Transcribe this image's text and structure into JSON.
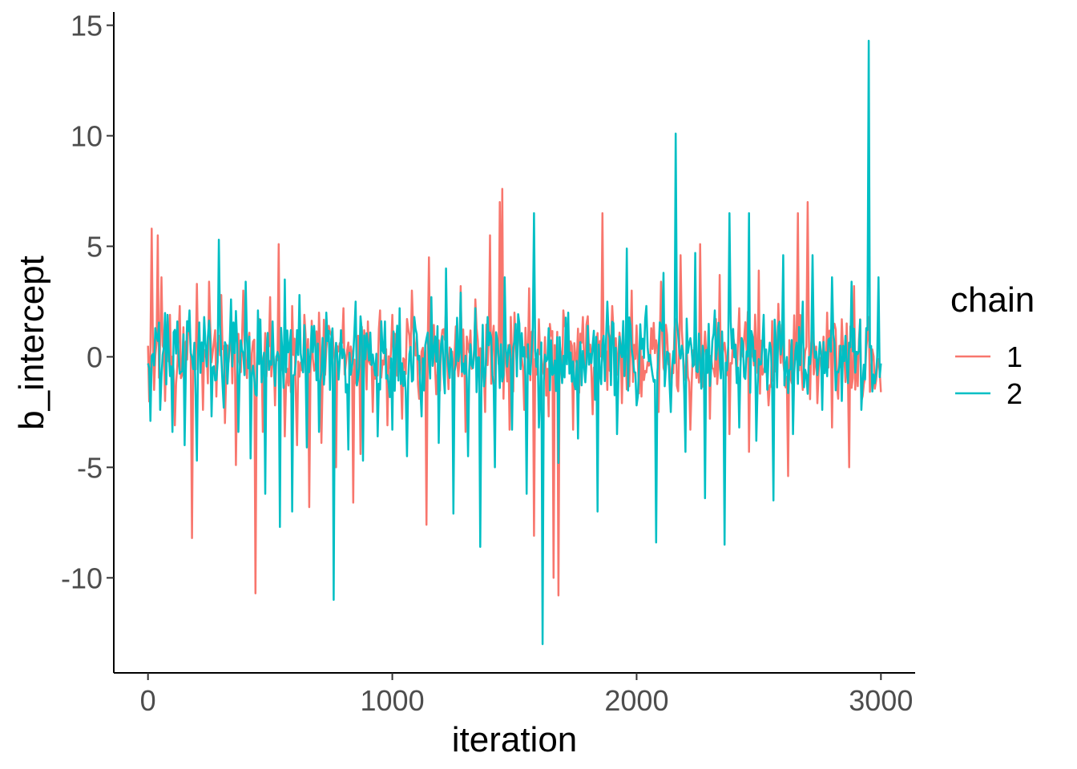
{
  "chart_data": {
    "type": "line",
    "xlabel": "iteration",
    "ylabel": "b_intercept",
    "xlim": [
      -140,
      3140
    ],
    "ylim": [
      -14.3,
      15.6
    ],
    "x_ticks": [
      0,
      1000,
      2000,
      3000
    ],
    "x_tick_labels": [
      "0",
      "1000",
      "2000",
      "3000"
    ],
    "y_ticks": [
      -10,
      -5,
      0,
      5,
      10,
      15
    ],
    "y_tick_labels": [
      "-10",
      "-5",
      "0",
      "5",
      "10",
      "15"
    ],
    "grid": false,
    "legend": {
      "title": "chain",
      "placement": "right"
    },
    "series": [
      {
        "name": "1",
        "color": "#F8766D",
        "x": [
          0,
          15,
          25,
          40,
          55,
          70,
          90,
          110,
          130,
          150,
          165,
          180,
          200,
          225,
          250,
          280,
          300,
          315,
          340,
          360,
          390,
          420,
          440,
          450,
          470,
          500,
          520,
          535,
          560,
          590,
          610,
          640,
          660,
          700,
          710,
          740,
          770,
          800,
          840,
          870,
          900,
          920,
          950,
          980,
          1000,
          1040,
          1080,
          1110,
          1140,
          1150,
          1180,
          1220,
          1250,
          1280,
          1300,
          1340,
          1380,
          1400,
          1420,
          1440,
          1450,
          1480,
          1500,
          1540,
          1560,
          1580,
          1600,
          1640,
          1660,
          1680,
          1700,
          1740,
          1780,
          1820,
          1860,
          1880,
          1900,
          1940,
          1980,
          2020,
          2060,
          2090,
          2100,
          2140,
          2180,
          2220,
          2260,
          2300,
          2340,
          2380,
          2420,
          2460,
          2500,
          2540,
          2580,
          2620,
          2660,
          2680,
          2700,
          2740,
          2780,
          2800,
          2840,
          2870,
          2890,
          2920,
          2950,
          2980,
          3000
        ],
        "y": [
          0.5,
          5.8,
          -1.5,
          5.5,
          3.6,
          -2.0,
          1.9,
          -3.1,
          2.3,
          -1.0,
          1.5,
          -8.2,
          3.3,
          -2.4,
          3.4,
          -1.8,
          2.8,
          -3.0,
          1.2,
          -4.9,
          3.0,
          -2.6,
          -10.7,
          0.8,
          -3.4,
          2.7,
          -2.2,
          5.1,
          -3.6,
          2.3,
          -4.0,
          1.9,
          -6.8,
          2.0,
          -3.9,
          1.4,
          -5.0,
          2.2,
          -6.6,
          -4.4,
          1.6,
          -2.5,
          2.1,
          -3.1,
          1.9,
          -2.8,
          3.0,
          -1.9,
          -7.6,
          4.5,
          -1.7,
          2.3,
          -2.2,
          3.2,
          -3.4,
          2.6,
          -2.5,
          5.5,
          -1.2,
          7.0,
          7.6,
          -3.3,
          2.0,
          -2.4,
          3.1,
          -8.1,
          1.7,
          -2.7,
          -10.0,
          -10.8,
          2.1,
          -3.3,
          1.8,
          -2.6,
          6.5,
          -1.5,
          2.3,
          -2.1,
          3.0,
          -1.8,
          1.3,
          -2.5,
          3.4,
          -2.0,
          4.6,
          -3.3,
          5.1,
          -2.8,
          3.7,
          -3.5,
          2.2,
          -4.3,
          3.9,
          -2.2,
          2.4,
          -5.4,
          6.5,
          -1.5,
          7.0,
          -2.1,
          2.0,
          -3.2,
          1.7,
          -5.0,
          3.2,
          -2.0,
          1.8,
          -1.1,
          -1.6
        ]
      },
      {
        "name": "2",
        "color": "#00BFC4",
        "x": [
          0,
          10,
          30,
          50,
          80,
          100,
          120,
          150,
          170,
          200,
          230,
          260,
          290,
          310,
          340,
          370,
          400,
          420,
          450,
          480,
          510,
          540,
          560,
          590,
          620,
          650,
          680,
          700,
          730,
          760,
          790,
          820,
          850,
          880,
          910,
          940,
          970,
          1000,
          1030,
          1060,
          1090,
          1120,
          1160,
          1190,
          1220,
          1250,
          1280,
          1310,
          1340,
          1360,
          1390,
          1420,
          1460,
          1490,
          1520,
          1550,
          1580,
          1600,
          1615,
          1640,
          1680,
          1720,
          1760,
          1800,
          1840,
          1880,
          1920,
          1960,
          2000,
          2040,
          2080,
          2110,
          2140,
          2160,
          2200,
          2240,
          2280,
          2320,
          2360,
          2380,
          2420,
          2460,
          2490,
          2520,
          2560,
          2600,
          2640,
          2680,
          2720,
          2760,
          2800,
          2840,
          2880,
          2920,
          2940,
          2950,
          2970,
          2990,
          3000
        ],
        "y": [
          -0.3,
          -2.9,
          1.3,
          -2.4,
          1.9,
          -3.4,
          1.6,
          -4.0,
          2.1,
          -4.7,
          1.8,
          -2.7,
          5.3,
          -2.3,
          2.6,
          -3.4,
          3.4,
          -4.6,
          2.1,
          -6.2,
          1.6,
          -7.7,
          3.5,
          -7.0,
          2.8,
          -4.1,
          1.4,
          -3.4,
          2.0,
          -11.0,
          1.2,
          -4.2,
          2.5,
          -4.7,
          1.1,
          -3.6,
          1.6,
          -3.3,
          2.2,
          -4.5,
          1.8,
          -2.7,
          2.7,
          -3.9,
          4.0,
          -7.1,
          2.9,
          -4.5,
          2.2,
          -8.6,
          1.8,
          -5.0,
          3.6,
          -3.3,
          1.5,
          -6.2,
          6.5,
          -3.2,
          -13.0,
          1.3,
          -4.8,
          2.0,
          -3.7,
          1.4,
          -7.0,
          2.5,
          -3.5,
          4.9,
          -2.2,
          2.3,
          -8.4,
          3.8,
          -2.5,
          10.1,
          -4.3,
          4.7,
          -6.4,
          2.1,
          -8.5,
          6.5,
          -3.2,
          6.5,
          -3.8,
          1.9,
          -6.5,
          4.6,
          -3.5,
          2.5,
          4.6,
          -2.4,
          3.6,
          -2.0,
          3.4,
          -2.4,
          1.3,
          14.3,
          -0.8,
          3.6,
          -0.3
        ]
      }
    ]
  }
}
